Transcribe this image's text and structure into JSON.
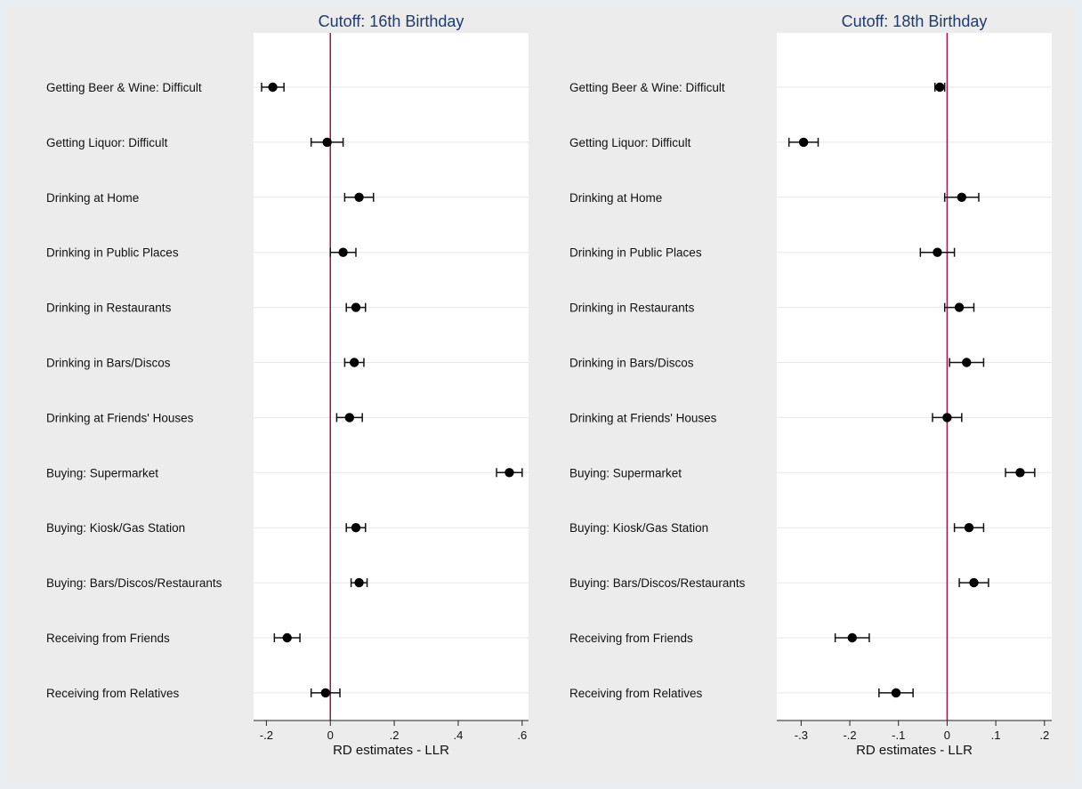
{
  "chart_data": [
    {
      "type": "scatter",
      "title": "Cutoff: 16th Birthday",
      "xlabel": "RD estimates - LLR",
      "ylabel": "",
      "xlim": [
        -0.24,
        0.62
      ],
      "xticks": [
        -0.2,
        0,
        0.2,
        0.4,
        0.6
      ],
      "xtick_labels": [
        "-.2",
        "0",
        ".2",
        ".4",
        ".6"
      ],
      "reference_line_x": 0,
      "reference_line_color": "#a0144f",
      "grid": "horizontal",
      "categories": [
        "Getting Beer & Wine: Difficult",
        "Getting Liquor: Difficult",
        "Drinking at Home",
        "Drinking in Public Places",
        "Drinking in Restaurants",
        "Drinking in Bars/Discos",
        "Drinking at Friends' Houses",
        "Buying: Supermarket",
        "Buying: Kiosk/Gas Station",
        "Buying: Bars/Discos/Restaurants",
        "Receiving from Friends",
        "Receiving from Relatives"
      ],
      "estimates": [
        -0.18,
        -0.01,
        0.09,
        0.04,
        0.08,
        0.075,
        0.06,
        0.56,
        0.08,
        0.09,
        -0.135,
        -0.015
      ],
      "ci_low": [
        -0.215,
        -0.06,
        0.045,
        0.0,
        0.05,
        0.045,
        0.02,
        0.52,
        0.05,
        0.065,
        -0.175,
        -0.06
      ],
      "ci_high": [
        -0.145,
        0.04,
        0.135,
        0.08,
        0.11,
        0.105,
        0.1,
        0.6,
        0.11,
        0.115,
        -0.095,
        0.03
      ]
    },
    {
      "type": "scatter",
      "title": "Cutoff: 18th Birthday",
      "xlabel": "RD estimates - LLR",
      "ylabel": "",
      "xlim": [
        -0.35,
        0.215
      ],
      "xticks": [
        -0.3,
        -0.2,
        -0.1,
        0,
        0.1,
        0.2
      ],
      "xtick_labels": [
        "-.3",
        "-.2",
        "-.1",
        "0",
        ".1",
        ".2"
      ],
      "reference_line_x": 0,
      "reference_line_color": "#a0144f",
      "grid": "horizontal",
      "categories": [
        "Getting Beer & Wine: Difficult",
        "Getting Liquor: Difficult",
        "Drinking at Home",
        "Drinking in Public Places",
        "Drinking in Restaurants",
        "Drinking in Bars/Discos",
        "Drinking at Friends' Houses",
        "Buying: Supermarket",
        "Buying: Kiosk/Gas Station",
        "Buying: Bars/Discos/Restaurants",
        "Receiving from Friends",
        "Receiving from Relatives"
      ],
      "estimates": [
        -0.015,
        -0.295,
        0.03,
        -0.02,
        0.025,
        0.04,
        0.0,
        0.15,
        0.045,
        0.055,
        -0.195,
        -0.105
      ],
      "ci_low": [
        -0.025,
        -0.325,
        -0.005,
        -0.055,
        -0.005,
        0.005,
        -0.03,
        0.12,
        0.015,
        0.025,
        -0.23,
        -0.14
      ],
      "ci_high": [
        -0.005,
        -0.265,
        0.065,
        0.015,
        0.055,
        0.075,
        0.03,
        0.18,
        0.075,
        0.085,
        -0.16,
        -0.07
      ]
    }
  ]
}
